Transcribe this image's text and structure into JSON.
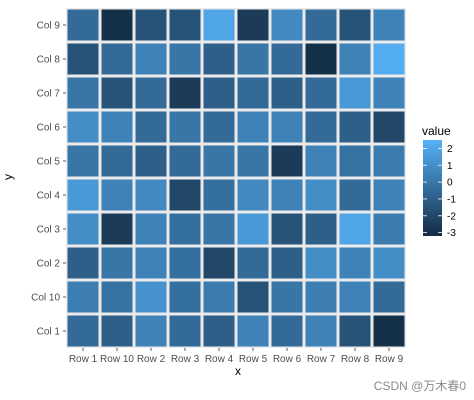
{
  "watermark": "CSDN @万木春0",
  "chart_data": {
    "type": "heatmap",
    "xlabel": "x",
    "ylabel": "y",
    "x": [
      "Row 1",
      "Row 10",
      "Row 2",
      "Row 3",
      "Row 4",
      "Row 5",
      "Row 6",
      "Row 7",
      "Row 8",
      "Row 9"
    ],
    "y": [
      "Col 1",
      "Col 10",
      "Col 2",
      "Col 3",
      "Col 4",
      "Col 5",
      "Col 6",
      "Col 7",
      "Col 8",
      "Col 9"
    ],
    "values": [
      [
        -0.5,
        -1.0,
        0.5,
        -0.5,
        -1.0,
        0.5,
        -0.5,
        0.5,
        -1.5,
        -3.0
      ],
      [
        0.3,
        -0.2,
        1.2,
        -0.3,
        0.2,
        -1.5,
        0.0,
        0.3,
        0.5,
        -0.5
      ],
      [
        -1.0,
        0.0,
        0.5,
        -0.3,
        -2.0,
        -0.5,
        -1.0,
        1.0,
        0.5,
        1.0
      ],
      [
        1.0,
        -2.5,
        0.5,
        -0.3,
        0.0,
        1.5,
        -1.5,
        -1.0,
        2.0,
        0.2
      ],
      [
        1.5,
        0.5,
        0.8,
        -2.0,
        -0.3,
        0.8,
        0.5,
        1.0,
        -0.5,
        0.5
      ],
      [
        0.0,
        -0.5,
        -1.0,
        -0.5,
        0.0,
        0.0,
        -2.5,
        0.5,
        -0.2,
        0.2
      ],
      [
        1.0,
        0.5,
        -0.5,
        0.0,
        -0.5,
        0.5,
        0.5,
        -0.5,
        -1.0,
        -2.0
      ],
      [
        0.0,
        -1.5,
        -0.5,
        -2.5,
        -1.0,
        -0.5,
        -1.0,
        -0.5,
        1.5,
        0.5
      ],
      [
        -1.5,
        -0.5,
        0.5,
        0.0,
        -1.0,
        0.0,
        -0.5,
        -3.0,
        0.5,
        2.3
      ],
      [
        -0.5,
        -3.0,
        -1.5,
        -1.5,
        2.0,
        -2.5,
        0.8,
        -0.5,
        -1.5,
        0.5
      ]
    ],
    "legend": {
      "title": "value",
      "breaks": [
        2,
        1,
        0,
        -1,
        -2,
        -3
      ],
      "range": [
        -3.2,
        2.5
      ],
      "position": "right"
    },
    "colors": {
      "low": "#132B43",
      "high": "#56B1F7",
      "panel": "#EBEBEB",
      "tile_border": "#ffffff"
    },
    "grid": false
  }
}
